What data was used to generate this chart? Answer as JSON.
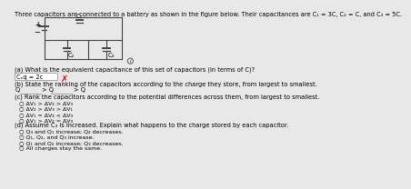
{
  "title": "Three capacitors are connected to a battery as shown in the figure below. Their capacitances are C₁ = 3C, C₂ = C, and C₃ = 5C.",
  "background_color": "#e8e8e8",
  "text_color": "#000000",
  "wire_color": "#444444",
  "part_a_label": "(a) What is the equivalent capacitance of this set of capacitors (in terms of C)?",
  "part_b_label": "(b) State the ranking of the capacitors according to the charge they store, from largest to smallest.",
  "part_c_label": "(c) Rank the capacitors according to the potential differences across them, from largest to smallest.",
  "part_c_options": [
    "○ ΔV₁ > ΔV₂ > ΔV₃",
    "○ ΔV₂ > ΔV₃ > ΔV₁",
    "○ ΔV₁ = ΔV₂ < ΔV₃",
    "○ ΔV₁ > ΔV₂ = ΔV₃"
  ],
  "part_d_label": "(d) Assume C₃ is increased. Explain what happens to the charge stored by each capacitor.",
  "part_d_options": [
    "○ Q₃ and Q₁ increase; Q₂ decreases.",
    "○ Q₁, Q₂, and Q₃ increase.",
    "○ Q₁ and Q₂ increase; Q₃ decreases.",
    "○ All charges stay the same."
  ],
  "fs_title": 4.8,
  "fs_text": 4.8,
  "fs_small": 4.5
}
